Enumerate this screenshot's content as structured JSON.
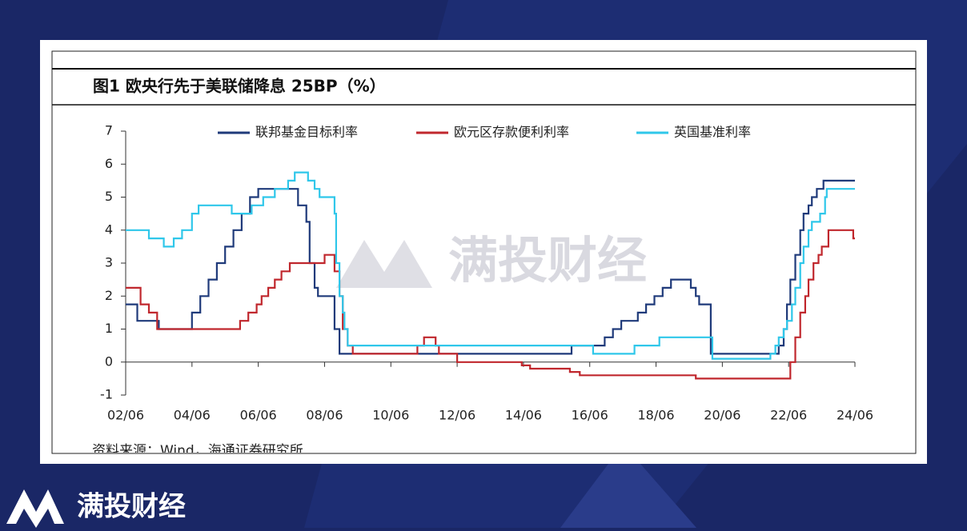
{
  "brand": "满投财经",
  "watermark": "满投财经",
  "source": "资料来源：Wind，海通证券研究所",
  "chart_data": {
    "type": "line",
    "title": "图1  欧央行先于美联储降息 25BP（%）",
    "legend": "top",
    "grid": false,
    "xlim": [
      2002.5,
      2024.5
    ],
    "ylim": [
      -1,
      7
    ],
    "yticks": [
      -1,
      0,
      1,
      2,
      3,
      4,
      5,
      6,
      7
    ],
    "xticks": [
      {
        "value": 2002.5,
        "label": "02/06"
      },
      {
        "value": 2004.5,
        "label": "04/06"
      },
      {
        "value": 2006.5,
        "label": "06/06"
      },
      {
        "value": 2008.5,
        "label": "08/06"
      },
      {
        "value": 2010.5,
        "label": "10/06"
      },
      {
        "value": 2012.5,
        "label": "12/06"
      },
      {
        "value": 2014.5,
        "label": "14/06"
      },
      {
        "value": 2016.5,
        "label": "16/06"
      },
      {
        "value": 2018.5,
        "label": "18/06"
      },
      {
        "value": 2020.5,
        "label": "20/06"
      },
      {
        "value": 2022.5,
        "label": "22/06"
      },
      {
        "value": 2024.5,
        "label": "24/06"
      }
    ],
    "series": [
      {
        "name": "联邦基金目标利率",
        "color": "#1f3a7a",
        "x": [
          2002.5,
          2002.85,
          2002.85,
          2003.5,
          2003.5,
          2004.5,
          2004.5,
          2004.75,
          2004.75,
          2005,
          2005,
          2005.25,
          2005.25,
          2005.5,
          2005.5,
          2005.75,
          2005.75,
          2006,
          2006,
          2006.25,
          2006.25,
          2006.5,
          2006.5,
          2007.7,
          2007.7,
          2007.95,
          2007.95,
          2008.05,
          2008.05,
          2008.2,
          2008.2,
          2008.3,
          2008.3,
          2008.8,
          2008.8,
          2008.95,
          2008.95,
          2015.95,
          2015.95,
          2016.95,
          2016.95,
          2017.2,
          2017.2,
          2017.45,
          2017.45,
          2017.95,
          2017.95,
          2018.2,
          2018.2,
          2018.45,
          2018.45,
          2018.7,
          2018.7,
          2018.95,
          2018.95,
          2019.55,
          2019.55,
          2019.7,
          2019.7,
          2019.8,
          2019.8,
          2020.15,
          2020.15,
          2022.2,
          2022.2,
          2022.35,
          2022.35,
          2022.45,
          2022.45,
          2022.55,
          2022.55,
          2022.7,
          2022.7,
          2022.85,
          2022.85,
          2022.95,
          2022.95,
          2023.1,
          2023.1,
          2023.2,
          2023.2,
          2023.35,
          2023.35,
          2023.55,
          2023.55,
          2024.5
        ],
        "values": [
          1.75,
          1.75,
          1.25,
          1.25,
          1,
          1,
          1.5,
          1.5,
          2,
          2,
          2.5,
          2.5,
          3,
          3,
          3.5,
          3.5,
          4,
          4,
          4.5,
          4.5,
          5,
          5,
          5.25,
          5.25,
          4.75,
          4.75,
          4.25,
          4.25,
          3,
          3,
          2.25,
          2.25,
          2,
          2,
          1,
          1,
          0.25,
          0.25,
          0.5,
          0.5,
          0.75,
          0.75,
          1,
          1,
          1.25,
          1.25,
          1.5,
          1.5,
          1.75,
          1.75,
          2,
          2,
          2.25,
          2.25,
          2.5,
          2.5,
          2.25,
          2.25,
          2,
          2,
          1.75,
          1.75,
          0.25,
          0.25,
          0.5,
          0.5,
          1,
          1,
          1.75,
          1.75,
          2.5,
          2.5,
          3.25,
          3.25,
          4,
          4,
          4.5,
          4.5,
          4.75,
          4.75,
          5,
          5,
          5.25,
          5.25,
          5.5,
          5.5
        ]
      },
      {
        "name": "欧元区存款便利利率",
        "color": "#c0272d",
        "x": [
          2002.5,
          2002.95,
          2002.95,
          2003.2,
          2003.2,
          2003.45,
          2003.45,
          2005.95,
          2005.95,
          2006.2,
          2006.2,
          2006.45,
          2006.45,
          2006.6,
          2006.6,
          2006.8,
          2006.8,
          2007,
          2007,
          2007.2,
          2007.2,
          2007.45,
          2007.45,
          2008.5,
          2008.5,
          2008.8,
          2008.8,
          2008.95,
          2008.95,
          2009.05,
          2009.05,
          2009.2,
          2009.2,
          2009.35,
          2009.35,
          2011.3,
          2011.3,
          2011.5,
          2011.5,
          2011.85,
          2011.85,
          2011.95,
          2011.95,
          2012.5,
          2012.5,
          2014.45,
          2014.45,
          2014.7,
          2014.7,
          2015.9,
          2015.9,
          2016.2,
          2016.2,
          2019.7,
          2019.7,
          2022.55,
          2022.55,
          2022.7,
          2022.7,
          2022.85,
          2022.85,
          2023,
          2023,
          2023.1,
          2023.1,
          2023.25,
          2023.25,
          2023.4,
          2023.4,
          2023.5,
          2023.5,
          2023.7,
          2023.7,
          2024.45,
          2024.45,
          2024.5
        ],
        "values": [
          2.25,
          2.25,
          1.75,
          1.75,
          1.5,
          1.5,
          1,
          1,
          1.25,
          1.25,
          1.5,
          1.5,
          1.75,
          1.75,
          2,
          2,
          2.25,
          2.25,
          2.5,
          2.5,
          2.75,
          2.75,
          3,
          3,
          3.25,
          3.25,
          2.75,
          2.75,
          2,
          2,
          1,
          1,
          0.5,
          0.5,
          0.25,
          0.25,
          0.5,
          0.5,
          0.75,
          0.75,
          0.5,
          0.5,
          0.25,
          0.25,
          0,
          0,
          -0.1,
          -0.1,
          -0.2,
          -0.2,
          -0.3,
          -0.3,
          -0.4,
          -0.4,
          -0.5,
          -0.5,
          0,
          0,
          0.75,
          0.75,
          1.5,
          1.5,
          2,
          2,
          2.5,
          2.5,
          3,
          3,
          3.25,
          3.25,
          3.5,
          3.5,
          4,
          4,
          3.75,
          3.75
        ]
      },
      {
        "name": "英国基准利率",
        "color": "#2fc7ea",
        "x": [
          2002.5,
          2003.2,
          2003.2,
          2003.65,
          2003.65,
          2003.95,
          2003.95,
          2004.2,
          2004.2,
          2004.5,
          2004.5,
          2004.7,
          2004.7,
          2005.7,
          2005.7,
          2006.3,
          2006.3,
          2006.65,
          2006.65,
          2007,
          2007,
          2007.4,
          2007.4,
          2007.6,
          2007.6,
          2008,
          2008,
          2008.2,
          2008.2,
          2008.35,
          2008.35,
          2008.8,
          2008.8,
          2008.85,
          2008.85,
          2008.95,
          2008.95,
          2009.05,
          2009.05,
          2009.1,
          2009.1,
          2009.2,
          2009.2,
          2016.6,
          2016.6,
          2017.85,
          2017.85,
          2018.6,
          2018.6,
          2020.2,
          2020.2,
          2021.95,
          2021.95,
          2022.1,
          2022.1,
          2022.2,
          2022.2,
          2022.35,
          2022.35,
          2022.45,
          2022.45,
          2022.6,
          2022.6,
          2022.7,
          2022.7,
          2022.85,
          2022.85,
          2022.95,
          2022.95,
          2023.1,
          2023.1,
          2023.2,
          2023.2,
          2023.45,
          2023.45,
          2023.6,
          2023.6,
          2023.65,
          2023.65,
          2024.5
        ],
        "values": [
          4,
          4,
          3.75,
          3.75,
          3.5,
          3.5,
          3.75,
          3.75,
          4,
          4,
          4.5,
          4.5,
          4.75,
          4.75,
          4.5,
          4.5,
          4.75,
          4.75,
          5,
          5,
          5.25,
          5.25,
          5.5,
          5.5,
          5.75,
          5.75,
          5.5,
          5.5,
          5.25,
          5.25,
          5,
          5,
          4.5,
          4.5,
          3,
          3,
          2,
          2,
          1.5,
          1.5,
          1,
          1,
          0.5,
          0.5,
          0.25,
          0.25,
          0.5,
          0.5,
          0.75,
          0.75,
          0.1,
          0.1,
          0.25,
          0.25,
          0.5,
          0.5,
          0.75,
          0.75,
          1,
          1,
          1.25,
          1.25,
          1.75,
          1.75,
          2.25,
          2.25,
          3,
          3,
          3.5,
          3.5,
          4,
          4,
          4.25,
          4.25,
          4.5,
          4.5,
          5,
          5,
          5.25,
          5.25
        ]
      }
    ]
  }
}
